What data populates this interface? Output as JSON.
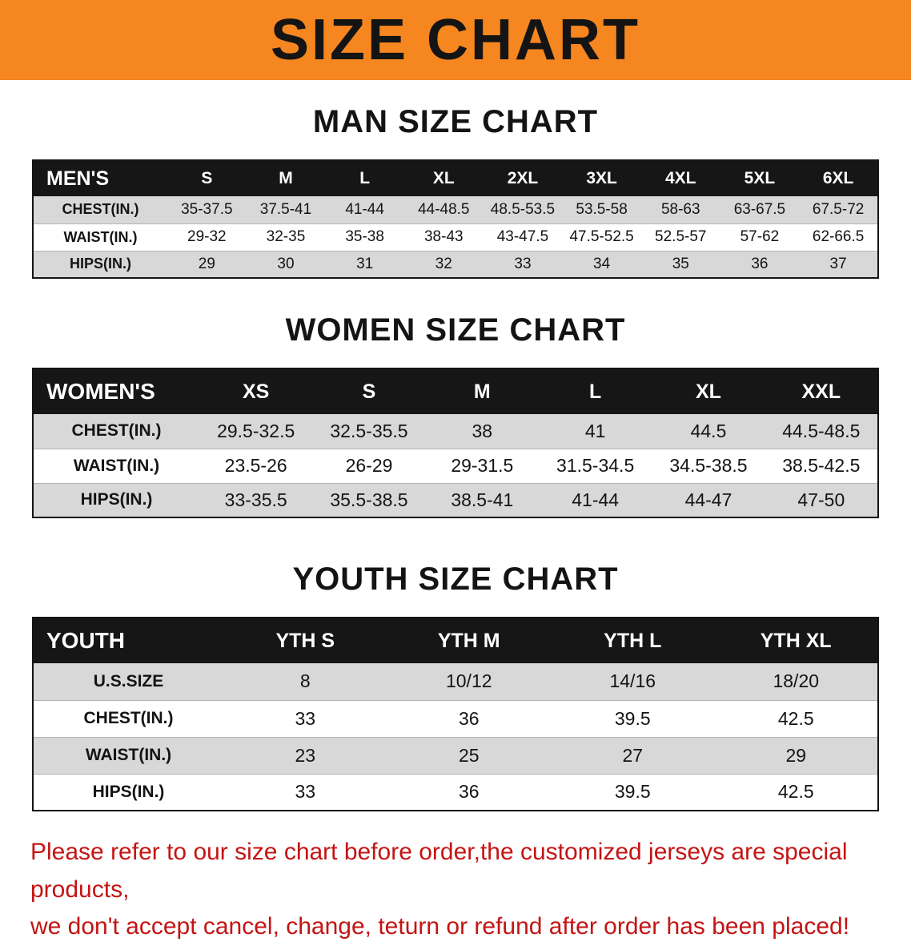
{
  "banner": {
    "title": "SIZE CHART",
    "background_color": "#f6861f"
  },
  "sections": [
    {
      "heading": "MAN SIZE CHART",
      "table": {
        "header": [
          "MEN'S",
          "S",
          "M",
          "L",
          "XL",
          "2XL",
          "3XL",
          "4XL",
          "5XL",
          "6XL"
        ],
        "rows": [
          {
            "label": "CHEST(IN.)",
            "values": [
              "35-37.5",
              "37.5-41",
              "41-44",
              "44-48.5",
              "48.5-53.5",
              "53.5-58",
              "58-63",
              "63-67.5",
              "67.5-72"
            ]
          },
          {
            "label": "WAIST(IN.)",
            "values": [
              "29-32",
              "32-35",
              "35-38",
              "38-43",
              "43-47.5",
              "47.5-52.5",
              "52.5-57",
              "57-62",
              "62-66.5"
            ]
          },
          {
            "label": "HIPS(IN.)",
            "values": [
              "29",
              "30",
              "31",
              "32",
              "33",
              "34",
              "35",
              "36",
              "37"
            ]
          }
        ]
      }
    },
    {
      "heading": "WOMEN SIZE CHART",
      "table": {
        "header": [
          "WOMEN'S",
          "XS",
          "S",
          "M",
          "L",
          "XL",
          "XXL"
        ],
        "rows": [
          {
            "label": "CHEST(IN.)",
            "values": [
              "29.5-32.5",
              "32.5-35.5",
              "38",
              "41",
              "44.5",
              "44.5-48.5"
            ]
          },
          {
            "label": "WAIST(IN.)",
            "values": [
              "23.5-26",
              "26-29",
              "29-31.5",
              "31.5-34.5",
              "34.5-38.5",
              "38.5-42.5"
            ]
          },
          {
            "label": "HIPS(IN.)",
            "values": [
              "33-35.5",
              "35.5-38.5",
              "38.5-41",
              "41-44",
              "44-47",
              "47-50"
            ]
          }
        ]
      }
    },
    {
      "heading": "YOUTH SIZE CHART",
      "table": {
        "header": [
          "YOUTH",
          "YTH S",
          "YTH M",
          "YTH L",
          "YTH XL"
        ],
        "rows": [
          {
            "label": "U.S.SIZE",
            "values": [
              "8",
              "10/12",
              "14/16",
              "18/20"
            ]
          },
          {
            "label": "CHEST(IN.)",
            "values": [
              "33",
              "36",
              "39.5",
              "42.5"
            ]
          },
          {
            "label": "WAIST(IN.)",
            "values": [
              "23",
              "25",
              "27",
              "29"
            ]
          },
          {
            "label": "HIPS(IN.)",
            "values": [
              "33",
              "36",
              "39.5",
              "42.5"
            ]
          }
        ]
      }
    }
  ],
  "footer": {
    "lines": [
      "Please refer to our size chart before order,the customized jerseys are special products,",
      "we don't accept cancel, change, teturn or refund after order has been placed!"
    ],
    "text_color": "#c41414"
  }
}
